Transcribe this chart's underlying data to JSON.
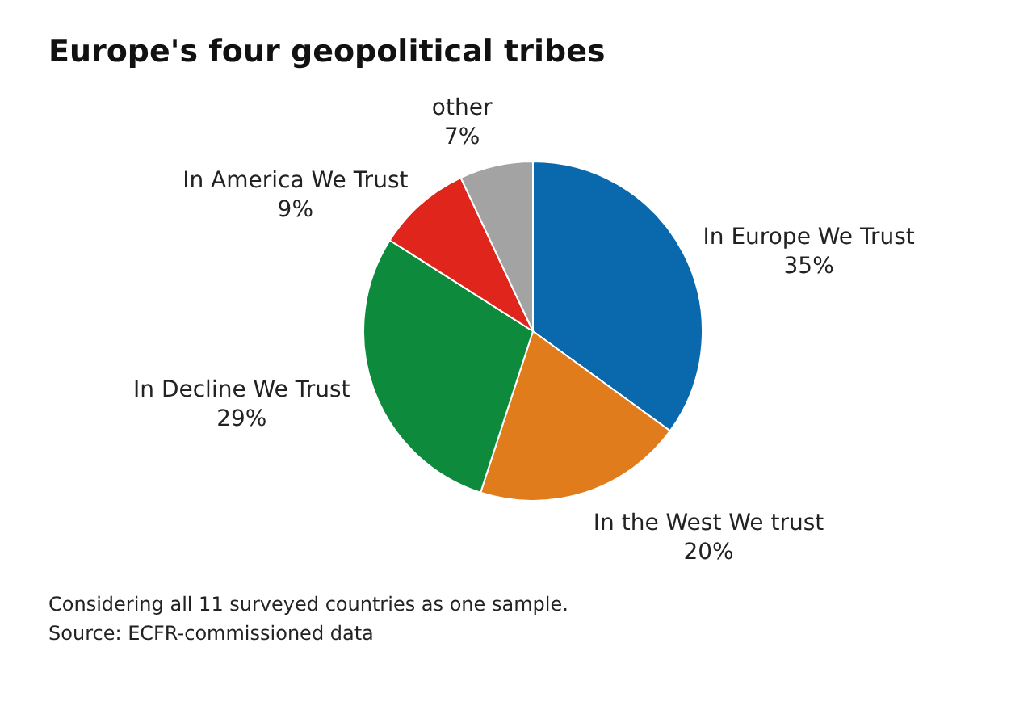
{
  "chart_data": {
    "type": "pie",
    "title": "Europe's four geopolitical tribes",
    "categories": [
      "In Europe We Trust",
      "In the West We trust",
      "In Decline We Trust",
      "In America We Trust",
      "other"
    ],
    "values": [
      35,
      20,
      29,
      9,
      7
    ],
    "value_labels": [
      "35%",
      "20%",
      "29%",
      "9%",
      "7%"
    ],
    "colors": [
      "#0a68ad",
      "#e07c1c",
      "#0d8a3c",
      "#e0261c",
      "#a3a3a3"
    ],
    "annotations": [
      "Considering all 11 surveyed countries as one sample.",
      "Source: ECFR-commissioned data"
    ]
  }
}
